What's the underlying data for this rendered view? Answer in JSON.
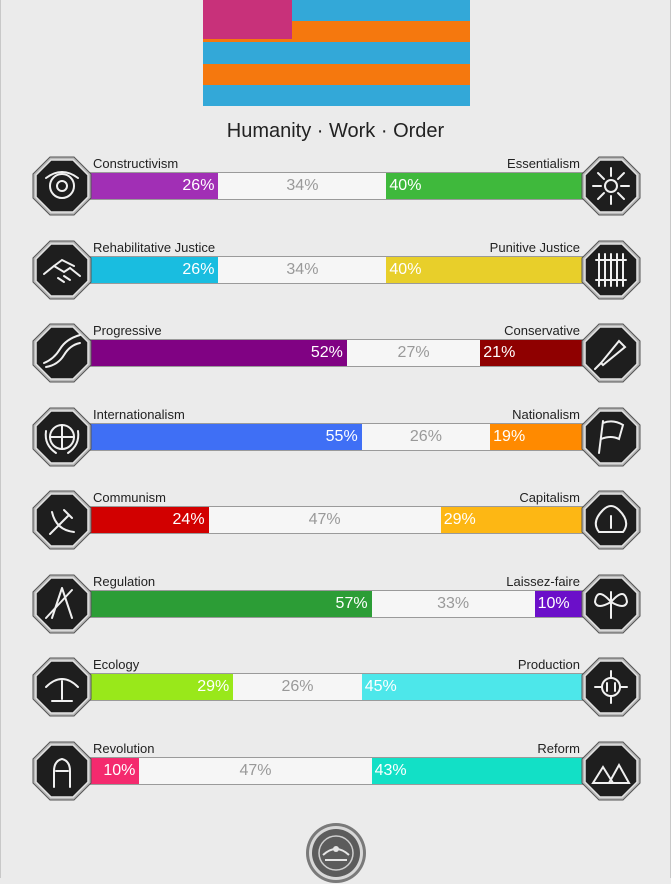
{
  "flag": {
    "stripes": [
      "#33a8d8",
      "#f5780e",
      "#33a8d8",
      "#f5780e",
      "#33a8d8"
    ],
    "canton": "#c8317a"
  },
  "motto": "Humanity · Work · Order",
  "axes": [
    {
      "left_label": "Constructivism",
      "right_label": "Essentialism",
      "left_pct": 26,
      "mid_pct": 34,
      "right_pct": 40,
      "left_text": "26%",
      "mid_text": "34%",
      "right_text": "40%",
      "left_color": "#a12fb5",
      "right_color": "#3fb93c",
      "left_icon": "lens-eye-icon",
      "right_icon": "wheat-sheaf-icon"
    },
    {
      "left_label": "Rehabilitative Justice",
      "right_label": "Punitive Justice",
      "left_pct": 26,
      "mid_pct": 34,
      "right_pct": 40,
      "left_text": "26%",
      "mid_text": "34%",
      "right_text": "40%",
      "left_color": "#19bde0",
      "right_color": "#e8cf2a",
      "left_icon": "handshake-icon",
      "right_icon": "prison-bars-icon"
    },
    {
      "left_label": "Progressive",
      "right_label": "Conservative",
      "left_pct": 52,
      "mid_pct": 27,
      "right_pct": 21,
      "left_text": "52%",
      "mid_text": "27%",
      "right_text": "21%",
      "left_color": "#800283",
      "right_color": "#8f0000",
      "left_icon": "wave-ribbon-icon",
      "right_icon": "fountain-pen-icon"
    },
    {
      "left_label": "Internationalism",
      "right_label": "Nationalism",
      "left_pct": 55,
      "mid_pct": 26,
      "right_pct": 19,
      "left_text": "55%",
      "mid_text": "26%",
      "right_text": "19%",
      "left_color": "#3f6ff5",
      "right_color": "#ff8a00",
      "left_icon": "globe-wreath-icon",
      "right_icon": "waving-flag-icon"
    },
    {
      "left_label": "Communism",
      "right_label": "Capitalism",
      "left_pct": 24,
      "mid_pct": 47,
      "right_pct": 29,
      "left_text": "24%",
      "mid_text": "47%",
      "right_text": "29%",
      "left_color": "#d20000",
      "right_color": "#fdb714",
      "left_icon": "hammer-sickle-icon",
      "right_icon": "money-bag-icon"
    },
    {
      "left_label": "Regulation",
      "right_label": "Laissez-faire",
      "left_pct": 57,
      "mid_pct": 33,
      "right_pct": 10,
      "left_text": "57%",
      "mid_text": "33%",
      "right_text": "10%",
      "left_color": "#2c9d36",
      "right_color": "#6b0fc9",
      "left_icon": "ruler-compass-icon",
      "right_icon": "butterfly-icon"
    },
    {
      "left_label": "Ecology",
      "right_label": "Production",
      "left_pct": 29,
      "mid_pct": 26,
      "right_pct": 45,
      "left_text": "29%",
      "mid_text": "26%",
      "right_text": "45%",
      "left_color": "#99e81a",
      "right_color": "#4de7ea",
      "left_icon": "eagle-icon",
      "right_icon": "factory-gear-icon"
    },
    {
      "left_label": "Revolution",
      "right_label": "Reform",
      "left_pct": 10,
      "mid_pct": 47,
      "right_pct": 43,
      "left_text": "10%",
      "mid_text": "47%",
      "right_text": "43%",
      "left_color": "#f42a6e",
      "right_color": "#12e0c6",
      "left_icon": "raised-fist-icon",
      "right_icon": "tents-icon"
    }
  ],
  "seal_icon": "round-seal-icon"
}
